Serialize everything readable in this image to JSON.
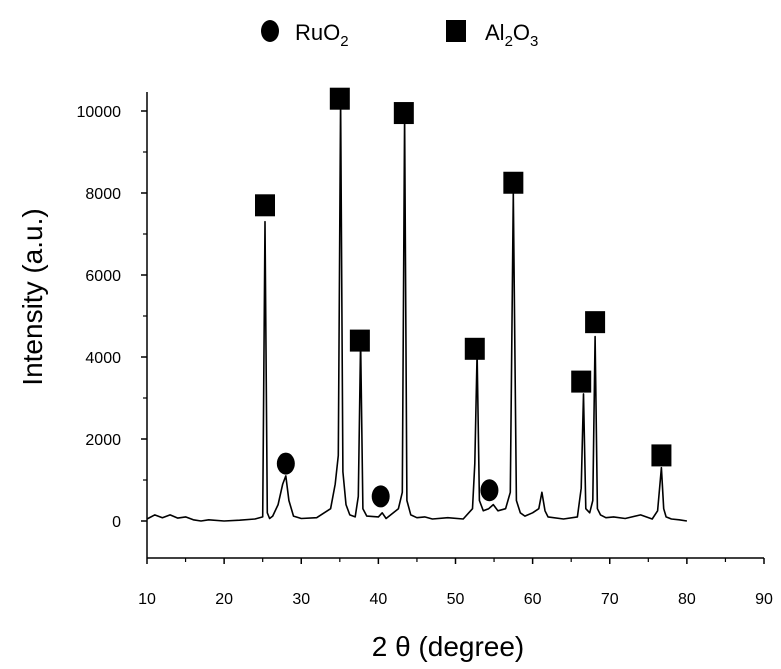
{
  "chart_data": {
    "type": "line",
    "xlabel": "2 θ  (degree)",
    "ylabel": "Intensity  (a.u.)",
    "xlim": [
      10,
      90
    ],
    "ylim": [
      -1000,
      10500
    ],
    "x_ticks": [
      10,
      20,
      30,
      40,
      50,
      60,
      70,
      80,
      90
    ],
    "y_ticks": [
      0,
      2000,
      4000,
      6000,
      8000,
      10000
    ],
    "grid": false,
    "legend": {
      "placement": "top-center",
      "entries": [
        {
          "marker": "circle",
          "label_main": "RuO",
          "label_sub": "2",
          "label_tail": ""
        },
        {
          "marker": "square",
          "label_main": "Al",
          "label_sub": "2",
          "label_tail": "O",
          "label_sub2": "3"
        }
      ]
    },
    "series": [
      {
        "x": [
          10,
          11,
          12,
          13,
          14,
          15,
          16,
          17,
          18,
          20,
          22,
          24,
          25.0,
          25.3,
          25.6,
          25.9,
          26.3,
          27.0,
          27.6,
          28.0,
          28.4,
          29.0,
          30,
          32,
          33.8,
          34.4,
          34.8,
          35.1,
          35.4,
          35.8,
          36.3,
          37.0,
          37.4,
          37.7,
          38.0,
          38.5,
          40,
          40.5,
          41,
          42.6,
          43.1,
          43.4,
          43.7,
          44.2,
          45,
          46,
          47,
          49,
          51,
          52.2,
          52.5,
          52.8,
          53.1,
          53.6,
          54.3,
          54.9,
          55.5,
          56.5,
          57.1,
          57.5,
          57.9,
          58.4,
          59,
          60,
          60.8,
          61.2,
          61.6,
          62,
          64,
          65.8,
          66.3,
          66.6,
          66.9,
          67.4,
          67.8,
          68.1,
          68.4,
          68.8,
          69.5,
          70.5,
          72,
          74,
          75.5,
          76.2,
          76.7,
          77.0,
          77.3,
          78,
          79,
          80
        ],
        "y": [
          50,
          150,
          80,
          150,
          70,
          100,
          30,
          0,
          30,
          0,
          20,
          50,
          100,
          7300,
          200,
          60,
          120,
          400,
          900,
          1100,
          500,
          120,
          60,
          80,
          300,
          900,
          1600,
          10300,
          1200,
          400,
          150,
          100,
          600,
          4400,
          300,
          120,
          100,
          200,
          60,
          300,
          700,
          9900,
          500,
          150,
          80,
          100,
          50,
          80,
          50,
          300,
          1400,
          4100,
          500,
          250,
          300,
          400,
          250,
          300,
          700,
          8000,
          500,
          200,
          120,
          200,
          300,
          700,
          250,
          100,
          50,
          100,
          800,
          3100,
          300,
          200,
          500,
          4500,
          300,
          150,
          80,
          100,
          60,
          150,
          50,
          250,
          1300,
          300,
          100,
          50,
          30,
          0
        ]
      }
    ],
    "annotations": [
      {
        "marker": "square",
        "x": 25.3,
        "y": 7700
      },
      {
        "marker": "circle",
        "x": 28.0,
        "y": 1400
      },
      {
        "marker": "square",
        "x": 35.0,
        "y": 10300
      },
      {
        "marker": "square",
        "x": 37.6,
        "y": 4400
      },
      {
        "marker": "circle",
        "x": 40.3,
        "y": 600
      },
      {
        "marker": "square",
        "x": 43.3,
        "y": 9950
      },
      {
        "marker": "square",
        "x": 52.5,
        "y": 4200
      },
      {
        "marker": "circle",
        "x": 54.4,
        "y": 750
      },
      {
        "marker": "square",
        "x": 57.5,
        "y": 8250
      },
      {
        "marker": "square",
        "x": 66.3,
        "y": 3400
      },
      {
        "marker": "square",
        "x": 68.1,
        "y": 4850
      },
      {
        "marker": "square",
        "x": 76.7,
        "y": 1600
      }
    ]
  }
}
